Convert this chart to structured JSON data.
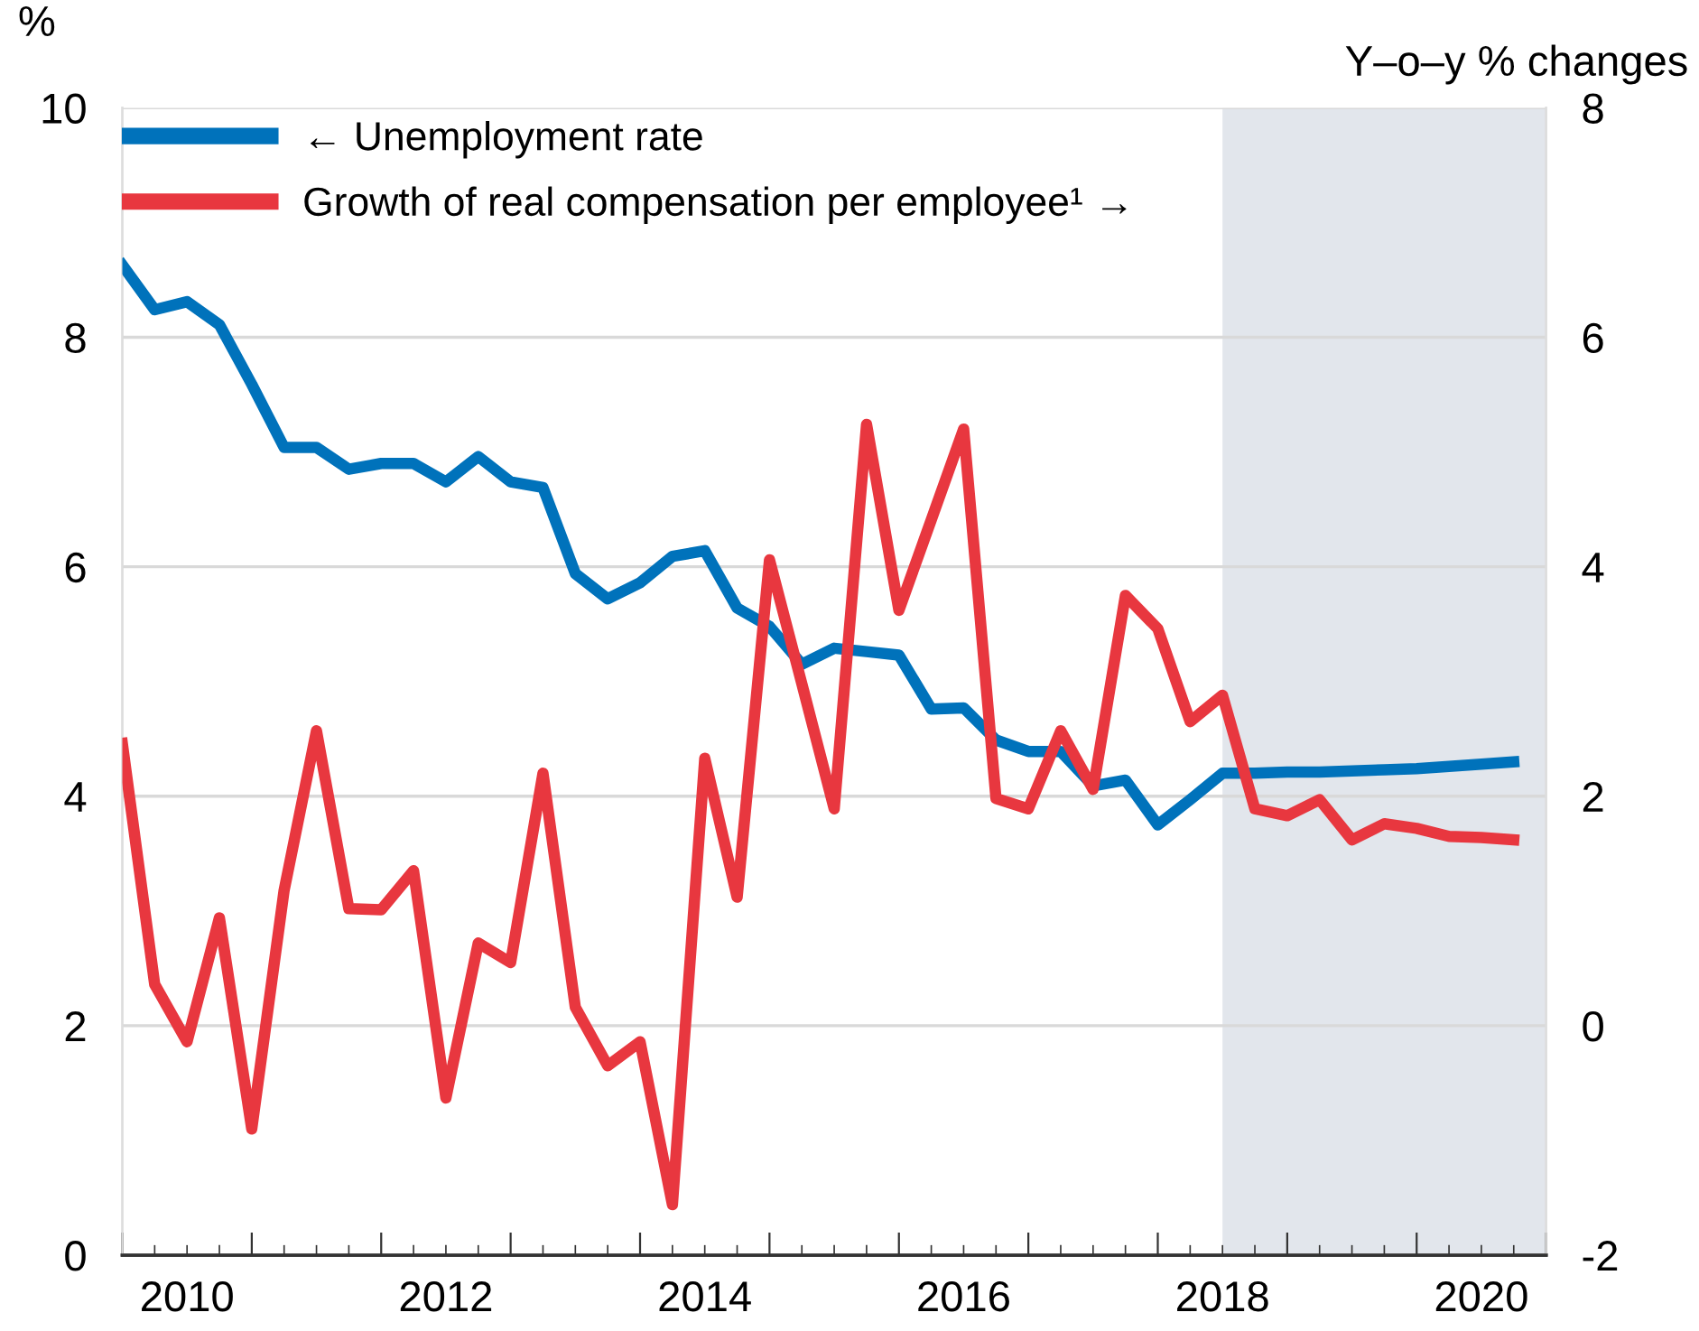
{
  "chart_data": {
    "type": "line",
    "ylabel": "%",
    "y2label": "Y–o–y % changes",
    "x": [
      2010.0,
      2010.25,
      2010.5,
      2010.75,
      2011.0,
      2011.25,
      2011.5,
      2011.75,
      2012.0,
      2012.25,
      2012.5,
      2012.75,
      2013.0,
      2013.25,
      2013.5,
      2013.75,
      2014.0,
      2014.25,
      2014.5,
      2014.75,
      2015.0,
      2015.25,
      2015.5,
      2015.75,
      2016.0,
      2016.25,
      2016.5,
      2016.75,
      2017.0,
      2017.25,
      2017.5,
      2017.75,
      2018.0,
      2018.25,
      2018.5,
      2018.75,
      2019.0,
      2019.25,
      2019.5,
      2019.75,
      2020.0,
      2020.25,
      2020.5,
      2020.75
    ],
    "series": [
      {
        "name": "← Unemployment rate",
        "color": "#0072bb",
        "values": [
          8.63,
          8.24,
          8.31,
          8.11,
          7.59,
          7.04,
          7.04,
          6.85,
          6.9,
          6.9,
          6.74,
          6.96,
          6.74,
          6.69,
          5.94,
          5.72,
          5.86,
          6.09,
          6.14,
          5.64,
          5.48,
          5.15,
          5.29,
          5.26,
          5.23,
          4.76,
          4.77,
          4.49,
          4.39,
          4.39,
          4.09,
          4.14,
          3.75,
          3.97,
          4.2,
          4.2,
          4.21,
          4.21,
          4.22,
          4.23,
          4.24,
          4.26,
          4.28,
          4.3
        ]
      },
      {
        "name": "Growth of real compensation per employee¹ →",
        "color": "#e8373f",
        "axis": "y2",
        "values": [
          2.46,
          0.36,
          -0.14,
          0.94,
          -0.9,
          1.18,
          2.57,
          1.02,
          1.01,
          1.35,
          -0.63,
          0.72,
          0.55,
          2.2,
          0.16,
          -0.35,
          -0.14,
          -1.56,
          2.33,
          1.12,
          4.06,
          2.98,
          1.89,
          5.24,
          3.62,
          4.41,
          5.2,
          1.98,
          1.89,
          2.57,
          2.06,
          3.75,
          3.46,
          2.65,
          2.88,
          1.89,
          1.83,
          1.97,
          1.62,
          1.76,
          1.72,
          1.65,
          1.64,
          1.62
        ]
      }
    ],
    "xlim": [
      2010,
      2021
    ],
    "xticks": [
      {
        "value": 2010,
        "label": null
      },
      {
        "value": 2010.25,
        "label": null
      },
      {
        "value": 2010.5,
        "label": "2010"
      },
      {
        "value": 2010.75,
        "label": null
      },
      {
        "value": 2011,
        "label": null
      },
      {
        "value": 2011.25,
        "label": null
      },
      {
        "value": 2011.5,
        "label": null
      },
      {
        "value": 2011.75,
        "label": null
      },
      {
        "value": 2012,
        "label": null
      },
      {
        "value": 2012.25,
        "label": null
      },
      {
        "value": 2012.5,
        "label": "2012"
      },
      {
        "value": 2012.75,
        "label": null
      },
      {
        "value": 2013,
        "label": null
      },
      {
        "value": 2013.25,
        "label": null
      },
      {
        "value": 2013.5,
        "label": null
      },
      {
        "value": 2013.75,
        "label": null
      },
      {
        "value": 2014,
        "label": null
      },
      {
        "value": 2014.25,
        "label": null
      },
      {
        "value": 2014.5,
        "label": "2014"
      },
      {
        "value": 2014.75,
        "label": null
      },
      {
        "value": 2015,
        "label": null
      },
      {
        "value": 2015.25,
        "label": null
      },
      {
        "value": 2015.5,
        "label": null
      },
      {
        "value": 2015.75,
        "label": null
      },
      {
        "value": 2016,
        "label": null
      },
      {
        "value": 2016.25,
        "label": null
      },
      {
        "value": 2016.5,
        "label": "2016"
      },
      {
        "value": 2016.75,
        "label": null
      },
      {
        "value": 2017,
        "label": null
      },
      {
        "value": 2017.25,
        "label": null
      },
      {
        "value": 2017.5,
        "label": null
      },
      {
        "value": 2017.75,
        "label": null
      },
      {
        "value": 2018,
        "label": null
      },
      {
        "value": 2018.25,
        "label": null
      },
      {
        "value": 2018.5,
        "label": "2018"
      },
      {
        "value": 2018.75,
        "label": null
      },
      {
        "value": 2019,
        "label": null
      },
      {
        "value": 2019.25,
        "label": null
      },
      {
        "value": 2019.5,
        "label": null
      },
      {
        "value": 2019.75,
        "label": null
      },
      {
        "value": 2020,
        "label": null
      },
      {
        "value": 2020.25,
        "label": null
      },
      {
        "value": 2020.5,
        "label": "2020"
      },
      {
        "value": 2020.75,
        "label": null
      },
      {
        "value": 2021,
        "label": null
      }
    ],
    "ylim": [
      0,
      10
    ],
    "yticks": [
      0,
      2,
      4,
      6,
      8,
      10
    ],
    "y2lim": [
      -2,
      8
    ],
    "y2ticks": [
      -2,
      0,
      2,
      4,
      6,
      8
    ],
    "bands": [
      {
        "axis": "x",
        "from": 2018.5,
        "to": 2021,
        "color": "#e2e6ec"
      }
    ],
    "grid": "y",
    "legend": "top left",
    "marker": "none",
    "line_style": "solid"
  }
}
